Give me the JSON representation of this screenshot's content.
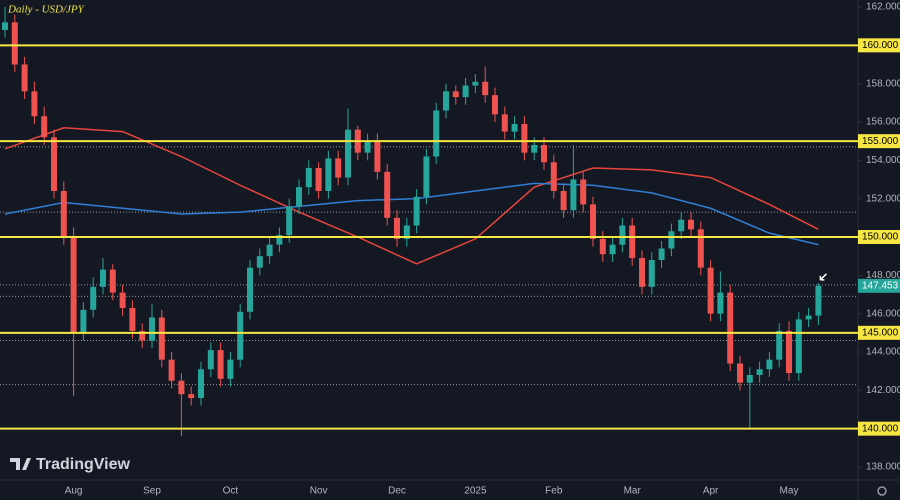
{
  "chart_data": {
    "type": "candlestick",
    "title": "Daily - USD/JPY",
    "watermark": "TradingView",
    "categories": [
      null,
      null,
      null,
      null,
      null,
      null,
      null,
      "Aug",
      null,
      null,
      null,
      null,
      null,
      null,
      null,
      "Sep",
      null,
      null,
      null,
      null,
      null,
      null,
      null,
      "Oct",
      null,
      null,
      null,
      null,
      null,
      null,
      null,
      null,
      "Nov",
      null,
      null,
      null,
      null,
      null,
      null,
      null,
      "Dec",
      null,
      null,
      null,
      null,
      null,
      null,
      null,
      "2025",
      null,
      null,
      null,
      null,
      null,
      null,
      null,
      "Feb",
      null,
      null,
      null,
      null,
      null,
      null,
      null,
      "Mar",
      null,
      null,
      null,
      null,
      null,
      null,
      null,
      "Apr",
      null,
      null,
      null,
      null,
      null,
      null,
      null,
      "May",
      null,
      null,
      null
    ],
    "open": [
      160.8,
      161.2,
      159.0,
      157.6,
      156.3,
      155.2,
      152.4,
      150.0,
      145.0,
      146.2,
      147.4,
      148.3,
      147.1,
      146.3,
      145.1,
      144.6,
      145.8,
      143.6,
      142.5,
      141.8,
      141.6,
      143.1,
      144.1,
      142.6,
      143.6,
      146.1,
      148.4,
      149.0,
      149.6,
      150.1,
      151.6,
      152.6,
      153.6,
      152.4,
      154.1,
      153.1,
      155.6,
      154.4,
      155.0,
      153.4,
      151.0,
      149.9,
      150.6,
      152.1,
      154.2,
      156.6,
      157.6,
      157.3,
      157.9,
      158.1,
      157.4,
      156.4,
      155.5,
      155.9,
      154.4,
      154.8,
      153.9,
      152.4,
      151.4,
      153.0,
      151.7,
      149.9,
      149.1,
      149.6,
      150.6,
      148.9,
      147.4,
      148.8,
      149.4,
      150.3,
      150.9,
      150.4,
      148.4,
      146.0,
      147.1,
      143.4,
      142.4,
      142.8,
      143.1,
      143.6,
      145.1,
      142.9,
      145.7,
      145.9
    ],
    "high": [
      162.0,
      161.6,
      159.4,
      158.1,
      156.8,
      155.6,
      152.9,
      150.5,
      146.6,
      147.9,
      148.9,
      148.6,
      147.5,
      146.7,
      145.5,
      146.5,
      146.2,
      144.0,
      142.9,
      142.2,
      143.5,
      144.5,
      144.5,
      144.0,
      146.5,
      148.8,
      149.4,
      150.0,
      150.5,
      152.0,
      153.0,
      154.0,
      153.9,
      154.5,
      154.5,
      156.7,
      155.8,
      155.4,
      155.4,
      153.8,
      151.4,
      151.0,
      152.5,
      154.6,
      157.0,
      158.0,
      157.9,
      158.3,
      158.5,
      158.9,
      157.8,
      156.8,
      156.3,
      156.3,
      155.2,
      155.2,
      154.3,
      152.8,
      154.8,
      153.4,
      152.1,
      150.3,
      150.0,
      151.0,
      151.0,
      149.3,
      149.2,
      149.8,
      150.7,
      151.3,
      151.3,
      150.8,
      148.8,
      148.2,
      147.5,
      143.8,
      143.2,
      143.5,
      144.0,
      145.5,
      145.6,
      146.1,
      146.3,
      147.6
    ],
    "low": [
      160.4,
      158.6,
      157.2,
      155.9,
      154.8,
      152.0,
      149.6,
      141.7,
      144.6,
      145.8,
      147.0,
      146.7,
      145.9,
      144.7,
      144.2,
      144.2,
      143.2,
      142.1,
      139.6,
      141.2,
      141.2,
      142.7,
      142.2,
      142.2,
      143.2,
      145.7,
      148.0,
      148.6,
      149.2,
      149.7,
      151.2,
      152.2,
      152.0,
      152.0,
      152.7,
      152.7,
      154.0,
      154.0,
      153.0,
      150.6,
      149.5,
      149.5,
      150.2,
      151.7,
      153.8,
      156.2,
      156.9,
      156.9,
      157.5,
      157.0,
      156.0,
      155.1,
      155.1,
      154.0,
      154.0,
      153.5,
      152.0,
      151.0,
      151.0,
      151.3,
      149.5,
      148.7,
      148.7,
      149.2,
      148.5,
      147.0,
      147.0,
      148.4,
      149.0,
      149.9,
      150.0,
      148.0,
      145.6,
      145.6,
      143.0,
      142.0,
      140.0,
      142.4,
      142.7,
      143.2,
      142.5,
      142.5,
      145.3,
      145.4
    ],
    "close": [
      161.2,
      159.0,
      157.6,
      156.3,
      155.2,
      152.4,
      150.0,
      145.0,
      146.2,
      147.4,
      148.3,
      147.1,
      146.3,
      145.1,
      144.6,
      145.8,
      143.6,
      142.5,
      141.8,
      141.6,
      143.1,
      144.1,
      142.6,
      143.6,
      146.1,
      148.4,
      149.0,
      149.6,
      150.1,
      151.6,
      152.6,
      153.6,
      152.4,
      154.1,
      153.1,
      155.6,
      154.4,
      155.0,
      153.4,
      151.0,
      149.9,
      150.6,
      152.1,
      154.2,
      156.6,
      157.6,
      157.3,
      157.9,
      158.1,
      157.4,
      156.4,
      155.5,
      155.9,
      154.4,
      154.8,
      153.9,
      152.4,
      151.4,
      153.0,
      151.7,
      149.9,
      149.1,
      149.6,
      150.6,
      148.9,
      147.4,
      148.8,
      149.4,
      150.3,
      150.9,
      150.4,
      148.4,
      146.0,
      147.1,
      143.4,
      142.4,
      142.8,
      143.1,
      143.6,
      145.1,
      142.9,
      145.7,
      145.9,
      147.453
    ],
    "up_color": "#26a69a",
    "down_color": "#ef5350",
    "lines": [
      {
        "color": "#e8453c",
        "x": [
          0,
          6,
          12,
          18,
          24,
          30,
          36,
          42,
          48,
          54,
          60,
          66,
          72,
          78,
          83
        ],
        "values": [
          154.6,
          155.7,
          155.5,
          154.2,
          152.7,
          151.3,
          150.0,
          148.6,
          149.9,
          152.6,
          153.6,
          153.5,
          153.1,
          151.7,
          150.4
        ]
      },
      {
        "color": "#2f7fd6",
        "x": [
          0,
          6,
          12,
          18,
          24,
          30,
          36,
          42,
          48,
          54,
          60,
          66,
          72,
          78,
          83
        ],
        "values": [
          151.2,
          151.8,
          151.5,
          151.2,
          151.3,
          151.6,
          151.9,
          152.0,
          152.4,
          152.8,
          152.7,
          152.3,
          151.5,
          150.2,
          149.6
        ]
      }
    ],
    "levels": [
      {
        "value": 160,
        "label": "160.000"
      },
      {
        "value": 155,
        "label": "155.000"
      },
      {
        "value": 150,
        "label": "150.000"
      },
      {
        "value": 145,
        "label": "145.000"
      },
      {
        "value": 140,
        "label": "140.000"
      }
    ],
    "level_color": "#f5e642",
    "dotted_levels": [
      154.7,
      151.3,
      147.5,
      146.9,
      144.6,
      142.3
    ],
    "ylim": [
      138,
      162
    ],
    "yticks": [
      {
        "value": 138,
        "label": "138.000"
      },
      {
        "value": 140,
        "label": "140.000"
      },
      {
        "value": 142,
        "label": "142.000"
      },
      {
        "value": 144,
        "label": "144.000"
      },
      {
        "value": 146,
        "label": "146.000"
      },
      {
        "value": 148,
        "label": "148.000"
      },
      {
        "value": 150,
        "label": "150.000"
      },
      {
        "value": 152,
        "label": "152.000"
      },
      {
        "value": 154,
        "label": "154.000"
      },
      {
        "value": 156,
        "label": "156.000"
      },
      {
        "value": 158,
        "label": "158.000"
      },
      {
        "value": 160,
        "label": "160.000"
      },
      {
        "value": 162,
        "label": "162.000"
      }
    ]
  }
}
